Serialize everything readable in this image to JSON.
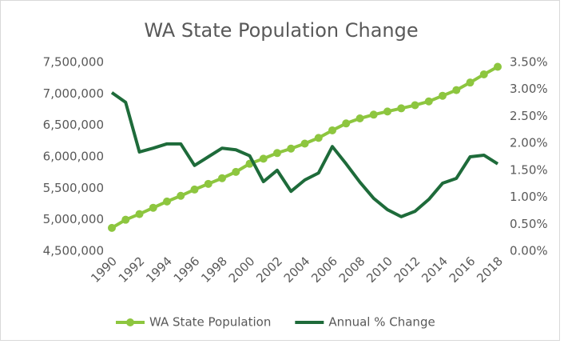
{
  "chart_data": {
    "type": "line",
    "title": "WA State Population Change",
    "categories": [
      "1990",
      null,
      "1992",
      null,
      "1994",
      null,
      "1996",
      null,
      "1998",
      null,
      "2000",
      null,
      "2002",
      null,
      "2004",
      null,
      "2006",
      null,
      "2008",
      null,
      "2010",
      null,
      "2012",
      null,
      "2014",
      null,
      "2016",
      null,
      "2018"
    ],
    "series": [
      {
        "name": "WA State Population",
        "color": "#8dc63f",
        "markers": true,
        "axis": "y",
        "values": [
          4870000,
          5000000,
          5090000,
          5190000,
          5290000,
          5380000,
          5480000,
          5570000,
          5660000,
          5760000,
          5890000,
          5970000,
          6060000,
          6130000,
          6210000,
          6300000,
          6420000,
          6530000,
          6610000,
          6670000,
          6720000,
          6770000,
          6820000,
          6880000,
          6970000,
          7060000,
          7180000,
          7310000,
          7430000
        ]
      },
      {
        "name": "Annual % Change",
        "color": "#1e6b3a",
        "markers": false,
        "axis": "y2",
        "values": [
          2.94,
          2.76,
          1.84,
          1.91,
          1.99,
          1.99,
          1.59,
          1.75,
          1.91,
          1.88,
          1.77,
          1.29,
          1.5,
          1.11,
          1.32,
          1.45,
          1.94,
          1.62,
          1.28,
          0.98,
          0.77,
          0.64,
          0.74,
          0.96,
          1.26,
          1.35,
          1.75,
          1.78,
          1.62
        ]
      }
    ],
    "ylim": [
      4500000,
      7500000
    ],
    "yticks": [
      {
        "value": 4500000,
        "label": "4,500,000"
      },
      {
        "value": 5000000,
        "label": "5,000,000"
      },
      {
        "value": 5500000,
        "label": "5,500,000"
      },
      {
        "value": 6000000,
        "label": "6,000,000"
      },
      {
        "value": 6500000,
        "label": "6,500,000"
      },
      {
        "value": 7000000,
        "label": "7,000,000"
      },
      {
        "value": 7500000,
        "label": "7,500,000"
      }
    ],
    "y2lim": [
      0,
      3.5
    ],
    "y2ticks": [
      {
        "value": 0,
        "label": "0.00%"
      },
      {
        "value": 0.5,
        "label": "0.50%"
      },
      {
        "value": 1,
        "label": "1.00%"
      },
      {
        "value": 1.5,
        "label": "1.50%"
      },
      {
        "value": 2,
        "label": "2.00%"
      },
      {
        "value": 2.5,
        "label": "2.50%"
      },
      {
        "value": 3,
        "label": "3.00%"
      },
      {
        "value": 3.5,
        "label": "3.50%"
      }
    ],
    "grid": false,
    "legend": "bottom"
  }
}
